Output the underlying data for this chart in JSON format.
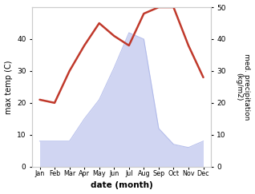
{
  "months": [
    "Jan",
    "Feb",
    "Mar",
    "Apr",
    "May",
    "Jun",
    "Jul",
    "Aug",
    "Sep",
    "Oct",
    "Nov",
    "Dec"
  ],
  "month_positions": [
    1,
    2,
    3,
    4,
    5,
    6,
    7,
    8,
    9,
    10,
    11,
    12
  ],
  "temp": [
    21,
    20,
    30,
    38,
    45,
    41,
    38,
    48,
    50,
    50,
    38,
    28
  ],
  "precip": [
    8,
    8,
    8,
    15,
    21,
    31,
    42,
    40,
    12,
    7,
    6,
    8
  ],
  "temp_color": "#c0392b",
  "precip_fill_color": "#aab4e8",
  "precip_fill_alpha": 0.55,
  "xlabel": "date (month)",
  "ylabel_left": "max temp (C)",
  "ylabel_right": "med. precipitation\n(kg/m2)",
  "ylim_left": [
    0,
    50
  ],
  "ylim_right": [
    0,
    50
  ],
  "yticks_left": [
    0,
    10,
    20,
    30,
    40
  ],
  "yticks_right": [
    0,
    10,
    20,
    30,
    40,
    50
  ],
  "background_color": "#ffffff"
}
